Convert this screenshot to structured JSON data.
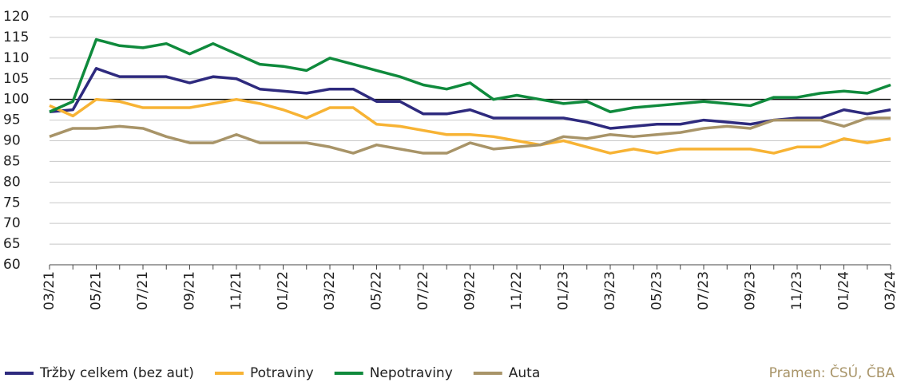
{
  "chart_data": {
    "type": "line",
    "categories": [
      "03/21",
      null,
      "05/21",
      null,
      "07/21",
      null,
      "09/21",
      null,
      "11/21",
      null,
      "01/22",
      null,
      "03/22",
      null,
      "05/22",
      null,
      "07/22",
      null,
      "09/22",
      null,
      "11/22",
      null,
      "01/23",
      null,
      "03/23",
      null,
      "05/23",
      null,
      "07/23",
      null,
      "09/23",
      null,
      "11/23",
      null,
      "01/24",
      null,
      "03/24"
    ],
    "series": [
      {
        "name": "Tržby celkem (bez aut)",
        "color": "#2e2a7e",
        "values": [
          97,
          97.5,
          107.5,
          105.5,
          105.5,
          105.5,
          104,
          105.5,
          105,
          102.5,
          102,
          101.5,
          102.5,
          102.5,
          99.5,
          99.5,
          96.5,
          96.5,
          97.5,
          95.5,
          95.5,
          95.5,
          95.5,
          94.5,
          93,
          93.5,
          94,
          94,
          95,
          94.5,
          94,
          95,
          95.5,
          95.5,
          97.5,
          96.5,
          97.5
        ]
      },
      {
        "name": "Potraviny",
        "color": "#f7b334",
        "values": [
          98.5,
          96,
          100,
          99.5,
          98,
          98,
          98,
          99,
          100,
          99,
          97.5,
          95.5,
          98,
          98,
          94,
          93.5,
          92.5,
          91.5,
          91.5,
          91,
          90,
          89,
          90,
          88.5,
          87,
          88,
          87,
          88,
          88,
          88,
          88,
          87,
          88.5,
          88.5,
          90.5,
          89.5,
          90.5
        ]
      },
      {
        "name": "Nepotraviny",
        "color": "#0f8a3c",
        "values": [
          97,
          99.5,
          114.5,
          113,
          112.5,
          113.5,
          111,
          113.5,
          111,
          108.5,
          108,
          107,
          110,
          108.5,
          107,
          105.5,
          103.5,
          102.5,
          104,
          100,
          101,
          100,
          99,
          99.5,
          97,
          98,
          98.5,
          99,
          99.5,
          99,
          98.5,
          100.5,
          100.5,
          101.5,
          102,
          101.5,
          103.5
        ]
      },
      {
        "name": "Auta",
        "color": "#a89468",
        "values": [
          91,
          93,
          93,
          93.5,
          93,
          91,
          89.5,
          89.5,
          91.5,
          89.5,
          89.5,
          89.5,
          88.5,
          87,
          89,
          88,
          87,
          87,
          89.5,
          88,
          88.5,
          89,
          91,
          90.5,
          91.5,
          91,
          91.5,
          92,
          93,
          93.5,
          93,
          95,
          95,
          95,
          93.5,
          95.5,
          95.5
        ]
      }
    ],
    "ylim": [
      60,
      120
    ],
    "yticks": [
      60,
      65,
      70,
      75,
      80,
      85,
      90,
      95,
      100,
      105,
      110,
      115,
      120
    ],
    "reference_line": 100,
    "grid": true,
    "source": "Pramen: ČSÚ, ČBA"
  }
}
